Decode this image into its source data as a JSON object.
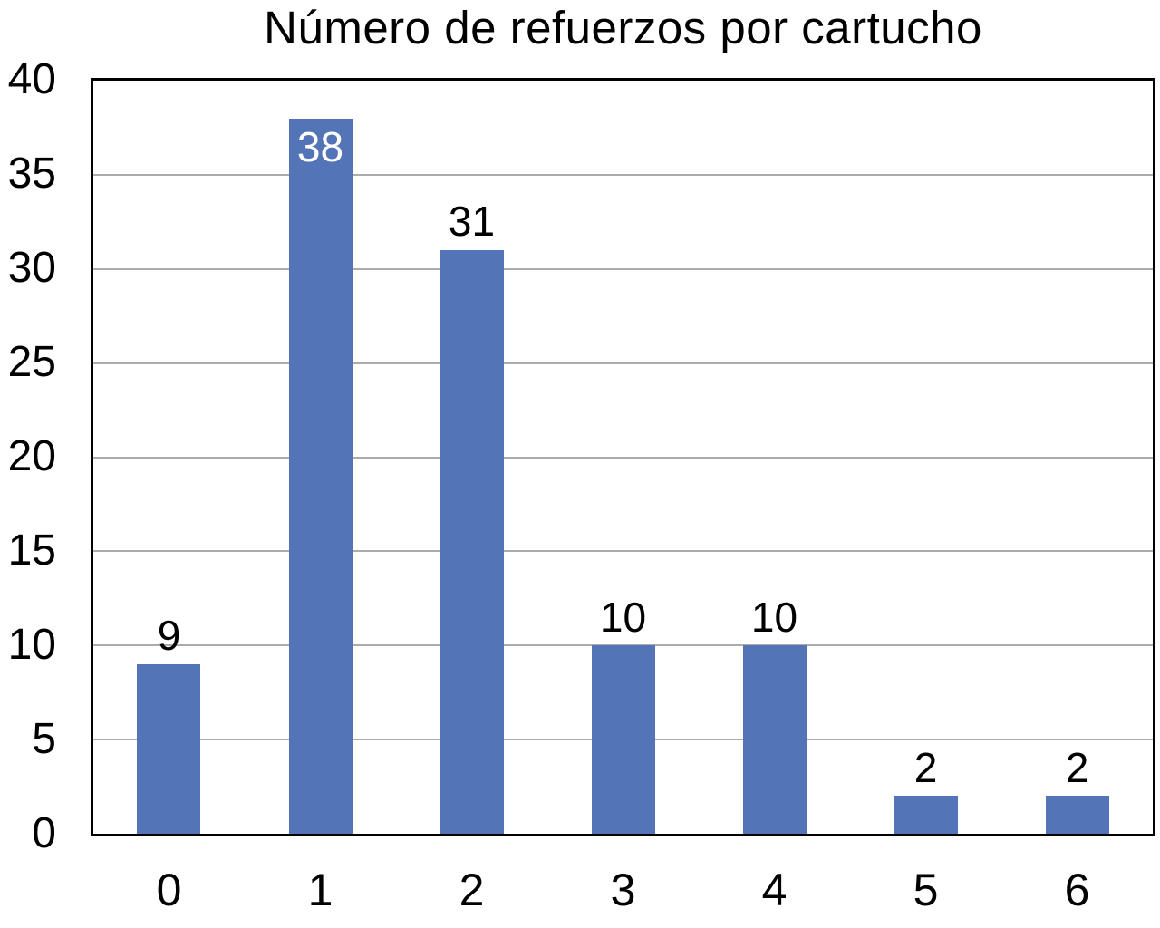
{
  "chart_data": {
    "type": "bar",
    "title": "Número de refuerzos por cartucho",
    "categories": [
      "0",
      "1",
      "2",
      "3",
      "4",
      "5",
      "6"
    ],
    "values": [
      9,
      38,
      31,
      10,
      10,
      2,
      2
    ],
    "data_labels": [
      {
        "text": "9",
        "position": "above",
        "color": "#000000"
      },
      {
        "text": "38",
        "position": "inside-top",
        "color": "#ffffff"
      },
      {
        "text": "31",
        "position": "above",
        "color": "#000000"
      },
      {
        "text": "10",
        "position": "above",
        "color": "#000000"
      },
      {
        "text": "10",
        "position": "above",
        "color": "#000000"
      },
      {
        "text": "2",
        "position": "above",
        "color": "#000000"
      },
      {
        "text": "2",
        "position": "above",
        "color": "#000000"
      }
    ],
    "xlabel": "",
    "ylabel": "",
    "ylim": [
      0,
      40
    ],
    "yticks": [
      0,
      5,
      10,
      15,
      20,
      25,
      30,
      35,
      40
    ],
    "grid": true,
    "legend": false,
    "bar_color": "#5374B6",
    "gridline_color": "#ABABAB",
    "axis_frame_color": "#000000",
    "text_color": "#000000"
  }
}
